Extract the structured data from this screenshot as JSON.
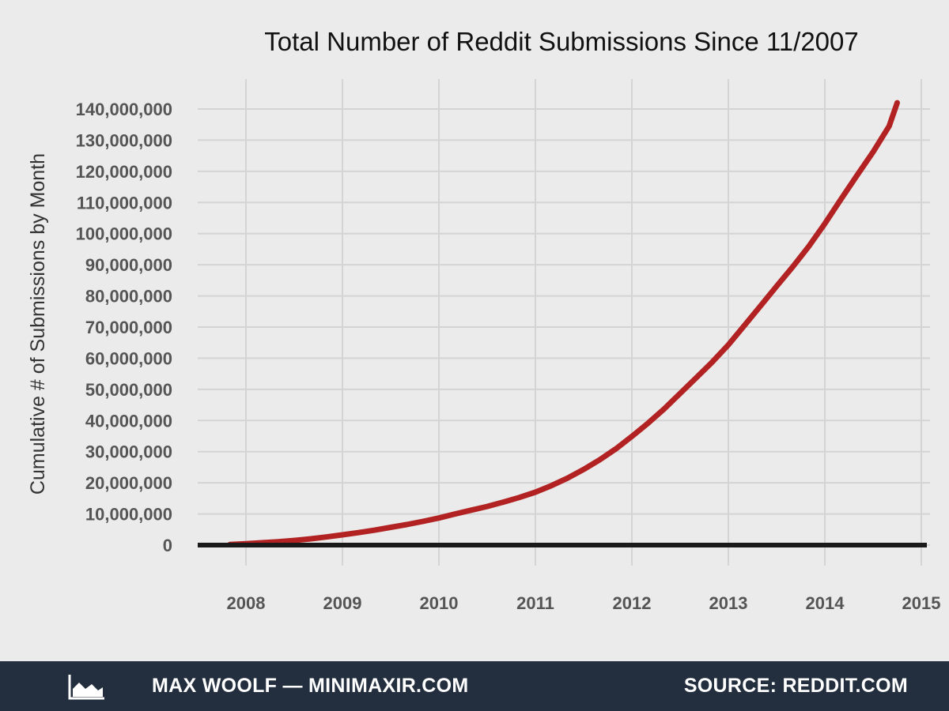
{
  "chart_data": {
    "type": "line",
    "title": "Total Number of Reddit Submissions Since 11/2007",
    "xlabel": "",
    "ylabel": "Cumulative # of Submissions by Month",
    "xlim": [
      2007.5,
      2015
    ],
    "ylim": [
      0,
      145000000
    ],
    "x_ticks": [
      2008,
      2009,
      2010,
      2011,
      2012,
      2013,
      2014,
      2015
    ],
    "y_ticks": [
      0,
      10000000,
      20000000,
      30000000,
      40000000,
      50000000,
      60000000,
      70000000,
      80000000,
      90000000,
      100000000,
      110000000,
      120000000,
      130000000,
      140000000
    ],
    "y_tick_labels": [
      "0",
      "10,000,000",
      "20,000,000",
      "30,000,000",
      "40,000,000",
      "50,000,000",
      "60,000,000",
      "70,000,000",
      "80,000,000",
      "90,000,000",
      "100,000,000",
      "110,000,000",
      "120,000,000",
      "130,000,000",
      "140,000,000"
    ],
    "grid": true,
    "series": [
      {
        "color": "#b22222",
        "x": [
          "2007-11",
          "2008-01",
          "2008-03",
          "2008-05",
          "2008-07",
          "2008-09",
          "2008-11",
          "2009-01",
          "2009-03",
          "2009-05",
          "2009-07",
          "2009-09",
          "2009-11",
          "2010-01",
          "2010-03",
          "2010-05",
          "2010-07",
          "2010-09",
          "2010-11",
          "2011-01",
          "2011-03",
          "2011-05",
          "2011-07",
          "2011-09",
          "2011-11",
          "2012-01",
          "2012-03",
          "2012-05",
          "2012-07",
          "2012-09",
          "2012-11",
          "2013-01",
          "2013-03",
          "2013-05",
          "2013-07",
          "2013-09",
          "2013-11",
          "2014-01",
          "2014-03",
          "2014-05",
          "2014-07",
          "2014-09",
          "2014-10"
        ],
        "values": [
          200000,
          450000,
          750000,
          1100000,
          1500000,
          2000000,
          2600000,
          3300000,
          4000000,
          4800000,
          5700000,
          6600000,
          7600000,
          8700000,
          10000000,
          11200000,
          12400000,
          13800000,
          15300000,
          17000000,
          19100000,
          21500000,
          24300000,
          27400000,
          30900000,
          34900000,
          39100000,
          43700000,
          48700000,
          53700000,
          58800000,
          64300000,
          70500000,
          76800000,
          83100000,
          89300000,
          95900000,
          103200000,
          111000000,
          118700000,
          126200000,
          134500000,
          142000000
        ]
      }
    ]
  },
  "footer": {
    "author": "MAX WOOLF — MINIMAXIR.COM",
    "source": "SOURCE: REDDIT.COM",
    "logo_icon": "area-chart-logo-icon"
  }
}
